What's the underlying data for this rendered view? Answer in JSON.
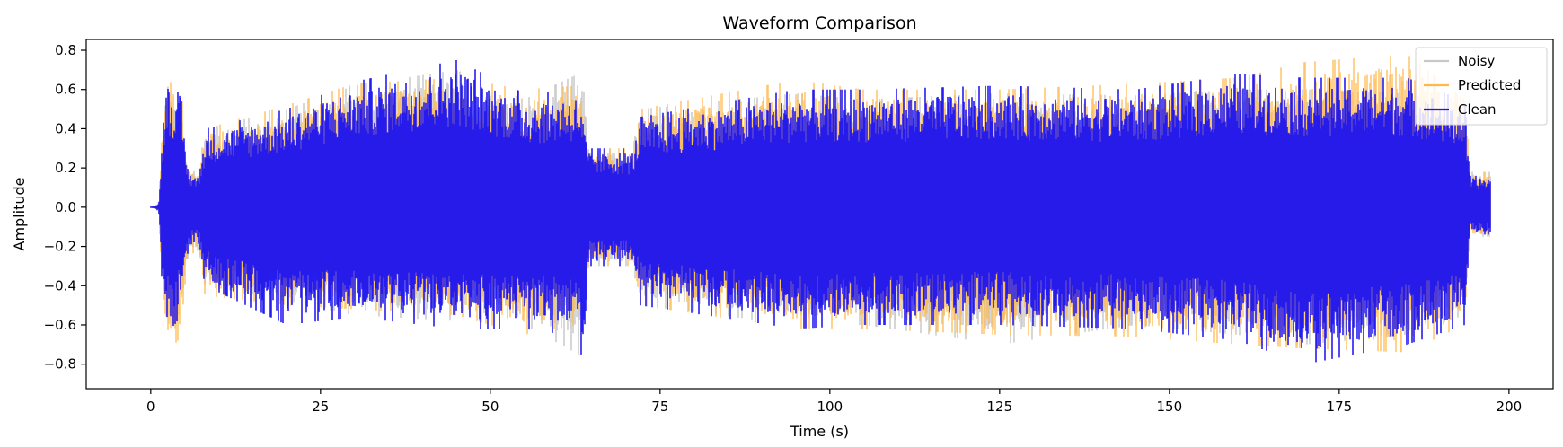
{
  "chart_data": {
    "type": "line",
    "title": "Waveform Comparison",
    "xlabel": "Time (s)",
    "ylabel": "Amplitude",
    "xlim": [
      -9.5,
      206.5
    ],
    "ylim": [
      -0.925,
      0.855
    ],
    "x_ticks": [
      0,
      25,
      50,
      75,
      100,
      125,
      150,
      175,
      200
    ],
    "x_tick_labels": [
      "0",
      "25",
      "50",
      "75",
      "100",
      "125",
      "150",
      "175",
      "200"
    ],
    "y_ticks": [
      0.8,
      0.6,
      0.4,
      0.2,
      0.0,
      -0.2,
      -0.4,
      -0.6,
      -0.8
    ],
    "y_tick_labels": [
      "0.8",
      "0.6",
      "0.4",
      "0.2",
      "0.0",
      "−0.2",
      "−0.4",
      "−0.6",
      "−0.8"
    ],
    "grid": false,
    "legend_position": "top-right",
    "time_range": [
      0,
      197.2
    ],
    "series": [
      {
        "name": "Noisy",
        "color": "#c8c8c8",
        "peak_envelope": [
          [
            0,
            0.0
          ],
          [
            1.2,
            0.02
          ],
          [
            1.5,
            0.28
          ],
          [
            2.2,
            0.62
          ],
          [
            3.5,
            0.6
          ],
          [
            4.5,
            0.55
          ],
          [
            5.5,
            0.2
          ],
          [
            7,
            0.18
          ],
          [
            8,
            0.4
          ],
          [
            20,
            0.5
          ],
          [
            30,
            0.62
          ],
          [
            45,
            0.7
          ],
          [
            55,
            0.55
          ],
          [
            63,
            0.68
          ],
          [
            63.8,
            0.72
          ],
          [
            64.5,
            0.3
          ],
          [
            71,
            0.3
          ],
          [
            72,
            0.5
          ],
          [
            95,
            0.58
          ],
          [
            105,
            0.55
          ],
          [
            125,
            0.58
          ],
          [
            145,
            0.57
          ],
          [
            160,
            0.6
          ],
          [
            170,
            0.6
          ],
          [
            185,
            0.58
          ],
          [
            193.5,
            0.45
          ],
          [
            194.3,
            0.18
          ],
          [
            197.2,
            0.18
          ]
        ],
        "trough_envelope": [
          [
            0,
            0.0
          ],
          [
            1.2,
            -0.02
          ],
          [
            1.5,
            -0.3
          ],
          [
            2.2,
            -0.62
          ],
          [
            3.5,
            -0.6
          ],
          [
            4.5,
            -0.55
          ],
          [
            5.5,
            -0.25
          ],
          [
            7,
            -0.22
          ],
          [
            8,
            -0.4
          ],
          [
            20,
            -0.48
          ],
          [
            30,
            -0.55
          ],
          [
            45,
            -0.58
          ],
          [
            55,
            -0.6
          ],
          [
            63,
            -0.75
          ],
          [
            64.5,
            -0.3
          ],
          [
            71,
            -0.3
          ],
          [
            72,
            -0.5
          ],
          [
            95,
            -0.6
          ],
          [
            105,
            -0.6
          ],
          [
            125,
            -0.7
          ],
          [
            145,
            -0.6
          ],
          [
            160,
            -0.65
          ],
          [
            170,
            -0.7
          ],
          [
            185,
            -0.65
          ],
          [
            193.5,
            -0.55
          ],
          [
            194.3,
            -0.15
          ],
          [
            197.2,
            -0.15
          ]
        ]
      },
      {
        "name": "Predicted",
        "color": "#ffb84d",
        "peak_envelope": [
          [
            0,
            0.0
          ],
          [
            1.2,
            0.02
          ],
          [
            1.5,
            0.3
          ],
          [
            2.2,
            0.66
          ],
          [
            3.5,
            0.62
          ],
          [
            4.5,
            0.66
          ],
          [
            5.5,
            0.2
          ],
          [
            7,
            0.18
          ],
          [
            8,
            0.4
          ],
          [
            20,
            0.52
          ],
          [
            30,
            0.63
          ],
          [
            45,
            0.66
          ],
          [
            55,
            0.6
          ],
          [
            63,
            0.62
          ],
          [
            64.5,
            0.3
          ],
          [
            71,
            0.3
          ],
          [
            72,
            0.5
          ],
          [
            95,
            0.65
          ],
          [
            105,
            0.6
          ],
          [
            125,
            0.6
          ],
          [
            145,
            0.63
          ],
          [
            160,
            0.66
          ],
          [
            170,
            0.74
          ],
          [
            185,
            0.78
          ],
          [
            193.5,
            0.55
          ],
          [
            194.3,
            0.18
          ],
          [
            197.2,
            0.18
          ]
        ],
        "trough_envelope": [
          [
            0,
            0.0
          ],
          [
            1.2,
            -0.02
          ],
          [
            1.5,
            -0.3
          ],
          [
            2.2,
            -0.68
          ],
          [
            3.5,
            -0.7
          ],
          [
            4.5,
            -0.66
          ],
          [
            5.5,
            -0.25
          ],
          [
            7,
            -0.22
          ],
          [
            8,
            -0.45
          ],
          [
            20,
            -0.5
          ],
          [
            30,
            -0.52
          ],
          [
            45,
            -0.55
          ],
          [
            55,
            -0.65
          ],
          [
            63,
            -0.6
          ],
          [
            64.5,
            -0.3
          ],
          [
            71,
            -0.3
          ],
          [
            72,
            -0.5
          ],
          [
            95,
            -0.62
          ],
          [
            105,
            -0.62
          ],
          [
            125,
            -0.65
          ],
          [
            145,
            -0.66
          ],
          [
            160,
            -0.7
          ],
          [
            170,
            -0.72
          ],
          [
            185,
            -0.74
          ],
          [
            193.5,
            -0.6
          ],
          [
            194.3,
            -0.15
          ],
          [
            197.2,
            -0.15
          ]
        ]
      },
      {
        "name": "Clean",
        "color": "#1a12f0",
        "peak_envelope": [
          [
            0,
            0.0
          ],
          [
            1.2,
            0.02
          ],
          [
            1.5,
            0.26
          ],
          [
            2.2,
            0.68
          ],
          [
            3.5,
            0.62
          ],
          [
            4.5,
            0.55
          ],
          [
            5.5,
            0.2
          ],
          [
            7,
            0.16
          ],
          [
            8,
            0.4
          ],
          [
            20,
            0.5
          ],
          [
            30,
            0.64
          ],
          [
            45,
            0.75
          ],
          [
            55,
            0.58
          ],
          [
            63,
            0.6
          ],
          [
            64.5,
            0.3
          ],
          [
            71,
            0.3
          ],
          [
            72,
            0.46
          ],
          [
            95,
            0.6
          ],
          [
            105,
            0.6
          ],
          [
            125,
            0.62
          ],
          [
            145,
            0.6
          ],
          [
            160,
            0.68
          ],
          [
            170,
            0.66
          ],
          [
            185,
            0.66
          ],
          [
            193.5,
            0.54
          ],
          [
            194.3,
            0.16
          ],
          [
            197.2,
            0.16
          ]
        ],
        "trough_envelope": [
          [
            0,
            0.0
          ],
          [
            1.2,
            -0.02
          ],
          [
            1.5,
            -0.3
          ],
          [
            2.2,
            -0.64
          ],
          [
            3.5,
            -0.6
          ],
          [
            4.5,
            -0.55
          ],
          [
            5.5,
            -0.22
          ],
          [
            7,
            -0.2
          ],
          [
            8,
            -0.4
          ],
          [
            20,
            -0.6
          ],
          [
            30,
            -0.56
          ],
          [
            45,
            -0.62
          ],
          [
            55,
            -0.62
          ],
          [
            63,
            -0.66
          ],
          [
            63.8,
            -0.85
          ],
          [
            64.5,
            -0.3
          ],
          [
            71,
            -0.3
          ],
          [
            72,
            -0.5
          ],
          [
            95,
            -0.62
          ],
          [
            105,
            -0.6
          ],
          [
            125,
            -0.6
          ],
          [
            145,
            -0.62
          ],
          [
            160,
            -0.68
          ],
          [
            170,
            -0.8
          ],
          [
            185,
            -0.7
          ],
          [
            193.5,
            -0.6
          ],
          [
            194.3,
            -0.14
          ],
          [
            197.2,
            -0.14
          ]
        ]
      }
    ]
  }
}
